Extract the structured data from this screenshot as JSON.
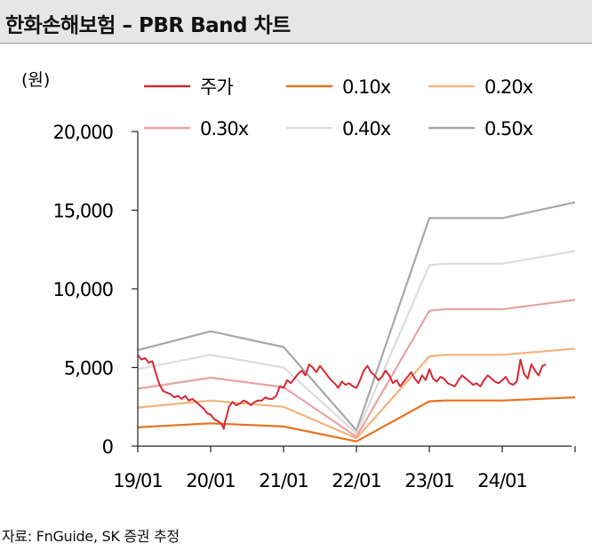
{
  "title": "한화손해보험 – PBR Band 차트",
  "source": "자료: FnGuide, SK 증권 추정",
  "chart_data": {
    "type": "line",
    "title": "한화손해보험 – PBR Band 차트",
    "ylabel": "(원)",
    "xlabel": "",
    "ylim": [
      0,
      20000
    ],
    "yticks": [
      0,
      5000,
      10000,
      15000,
      20000
    ],
    "ytick_labels": [
      "0",
      "5,000",
      "10,000",
      "15,000",
      "20,000"
    ],
    "xlim": [
      0,
      6.0
    ],
    "xticks": [
      0,
      1,
      2,
      3,
      4,
      5
    ],
    "xtick_labels": [
      "19/01",
      "20/01",
      "21/01",
      "22/01",
      "23/01",
      "24/01"
    ],
    "grid": false,
    "legend_position": "top",
    "series": [
      {
        "name": "주가",
        "color": "#d42a35",
        "x": [
          0,
          0.05,
          0.1,
          0.15,
          0.2,
          0.25,
          0.3,
          0.35,
          0.4,
          0.45,
          0.5,
          0.55,
          0.6,
          0.65,
          0.7,
          0.75,
          0.8,
          0.85,
          0.9,
          0.95,
          1.0,
          1.05,
          1.1,
          1.15,
          1.18,
          1.2,
          1.22,
          1.25,
          1.3,
          1.35,
          1.4,
          1.45,
          1.5,
          1.55,
          1.6,
          1.65,
          1.7,
          1.75,
          1.8,
          1.85,
          1.9,
          1.95,
          2.0,
          2.05,
          2.1,
          2.15,
          2.2,
          2.25,
          2.3,
          2.35,
          2.4,
          2.45,
          2.5,
          2.55,
          2.6,
          2.65,
          2.7,
          2.75,
          2.8,
          2.85,
          2.9,
          2.95,
          3.0,
          3.05,
          3.1,
          3.15,
          3.2,
          3.25,
          3.3,
          3.35,
          3.4,
          3.45,
          3.5,
          3.55,
          3.6,
          3.65,
          3.7,
          3.75,
          3.8,
          3.85,
          3.9,
          3.95,
          4.0,
          4.05,
          4.1,
          4.15,
          4.2,
          4.25,
          4.3,
          4.35,
          4.4,
          4.45,
          4.5,
          4.55,
          4.6,
          4.65,
          4.7,
          4.75,
          4.8,
          4.85,
          4.9,
          4.95,
          5.0,
          5.05,
          5.1,
          5.15,
          5.2,
          5.25,
          5.3,
          5.35,
          5.4,
          5.45,
          5.5,
          5.55,
          5.6
        ],
        "values": [
          5800,
          5500,
          5600,
          5300,
          5400,
          4600,
          3900,
          3500,
          3400,
          3300,
          3100,
          3200,
          3000,
          3200,
          2900,
          3000,
          2800,
          2600,
          2400,
          2100,
          2000,
          1700,
          1600,
          1400,
          1100,
          1600,
          1900,
          2500,
          2800,
          2600,
          2700,
          2900,
          2800,
          2600,
          2800,
          2900,
          2900,
          3100,
          3000,
          3000,
          3200,
          3800,
          3700,
          4200,
          4000,
          4300,
          4600,
          4800,
          4500,
          5200,
          5000,
          4700,
          5100,
          4800,
          4500,
          4200,
          4000,
          3700,
          4100,
          3900,
          4000,
          3800,
          3700,
          4200,
          4800,
          5100,
          4700,
          4500,
          4200,
          4400,
          4800,
          4500,
          4000,
          4200,
          3800,
          4100,
          4400,
          4700,
          4300,
          4000,
          4500,
          4200,
          4900,
          4300,
          4100,
          4400,
          4300,
          4000,
          3900,
          3800,
          4200,
          4500,
          4300,
          4100,
          3900,
          4000,
          3800,
          4200,
          4500,
          4300,
          4100,
          4000,
          4200,
          4400,
          4000,
          3900,
          4100,
          5500,
          4600,
          4300,
          5200,
          4800,
          4500,
          5100,
          5200
        ]
      },
      {
        "name": "0.10x",
        "color": "#e8721c",
        "x": [
          0,
          1.0,
          2.0,
          3.0,
          4.0,
          4.2,
          5.0,
          6.0
        ],
        "values": [
          1200,
          1450,
          1250,
          300,
          2850,
          2900,
          2900,
          3100
        ]
      },
      {
        "name": "0.20x",
        "color": "#f6b27d",
        "x": [
          0,
          1.0,
          2.0,
          3.0,
          4.0,
          4.2,
          5.0,
          6.0
        ],
        "values": [
          2450,
          2900,
          2500,
          500,
          5700,
          5800,
          5800,
          6200
        ]
      },
      {
        "name": "0.30x",
        "color": "#e9a2a2",
        "x": [
          0,
          1.0,
          2.0,
          3.0,
          4.0,
          4.2,
          5.0,
          6.0
        ],
        "values": [
          3650,
          4350,
          3750,
          600,
          8600,
          8700,
          8700,
          9300
        ]
      },
      {
        "name": "0.40x",
        "color": "#dcdcdc",
        "x": [
          0,
          1.0,
          2.0,
          3.0,
          4.0,
          4.2,
          5.0,
          6.0
        ],
        "values": [
          4900,
          5800,
          5000,
          800,
          11500,
          11600,
          11600,
          12400
        ]
      },
      {
        "name": "0.50x",
        "color": "#a8a8a8",
        "x": [
          0,
          1.0,
          2.0,
          3.0,
          4.0,
          4.2,
          5.0,
          6.0
        ],
        "values": [
          6100,
          7300,
          6300,
          1000,
          14500,
          14500,
          14500,
          15500
        ]
      }
    ]
  }
}
